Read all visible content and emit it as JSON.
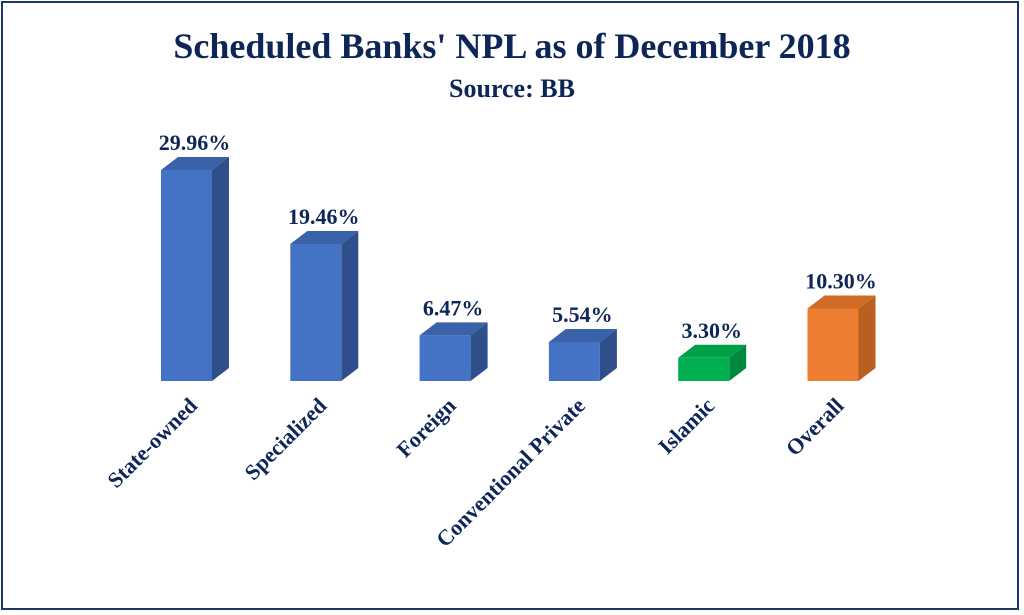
{
  "chart_data": {
    "type": "bar",
    "title": "Scheduled Banks' NPL as of December 2018",
    "subtitle": "Source: BB",
    "xlabel": "",
    "ylabel": "",
    "ylim": [
      0,
      32
    ],
    "grid": false,
    "categories": [
      "State-owned",
      "Specialized",
      "Foreign",
      "Conventional Private",
      "Islamic",
      "Overall"
    ],
    "values": [
      29.96,
      19.46,
      6.47,
      5.54,
      3.3,
      10.3
    ],
    "labels": [
      "29.96%",
      "19.46%",
      "6.47%",
      "5.54%",
      "3.30%",
      "10.30%"
    ],
    "colors": [
      "#4472c4",
      "#4472c4",
      "#4472c4",
      "#4472c4",
      "#00b050",
      "#ed7d31"
    ],
    "side_colors": [
      "#2f4f8a",
      "#2f4f8a",
      "#2f4f8a",
      "#2f4f8a",
      "#00893e",
      "#b8601f"
    ],
    "top_colors": [
      "#3a62a8",
      "#3a62a8",
      "#3a62a8",
      "#3a62a8",
      "#00a047",
      "#d06b26"
    ]
  }
}
